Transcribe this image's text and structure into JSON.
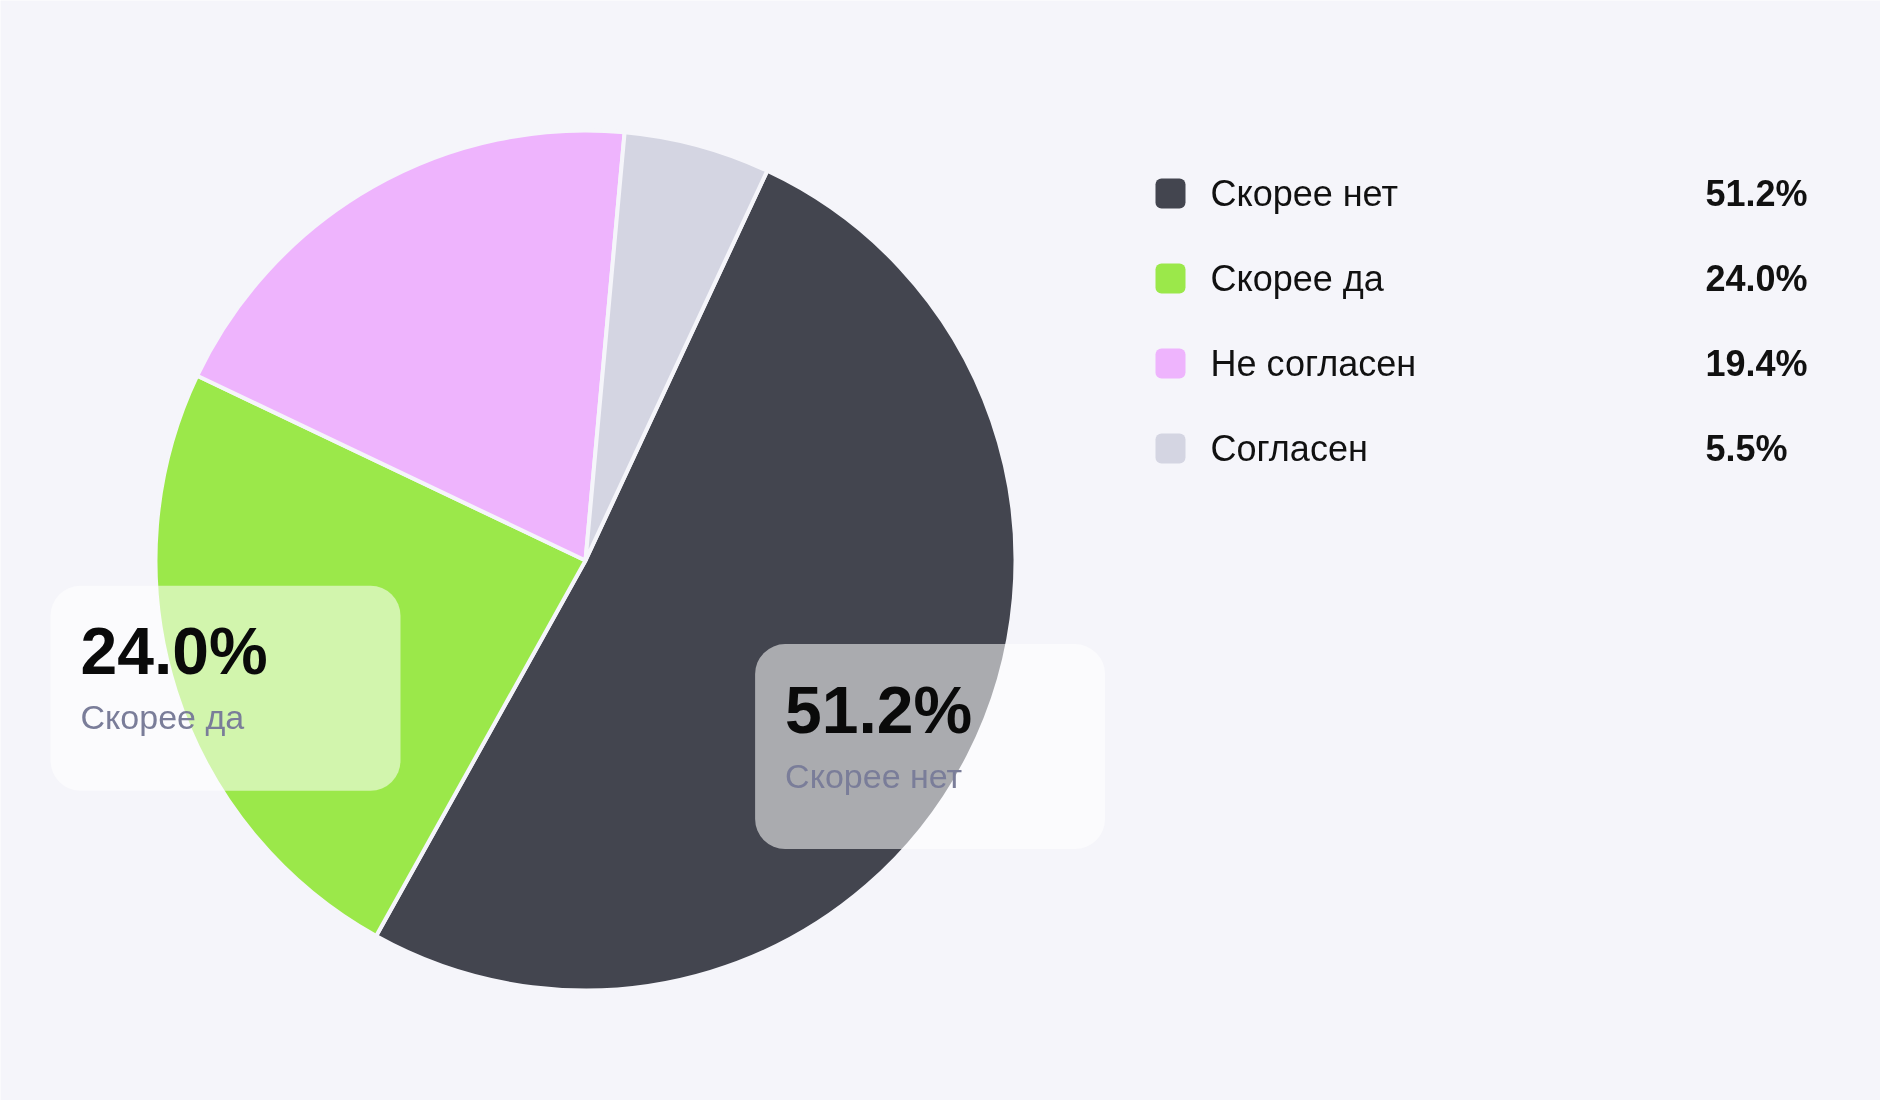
{
  "chart_data": {
    "type": "pie",
    "categories": [
      "Скорее нет",
      "Скорее да",
      "Не согласен",
      "Согласен"
    ],
    "values": [
      51.2,
      24.0,
      19.4,
      5.5
    ],
    "colors": [
      "#43454f",
      "#9be84a",
      "#eeb4fd",
      "#d4d5e2"
    ],
    "data_labels": true,
    "value_labels": [
      "51.2%",
      "24.0%",
      "19.4%",
      "5.5%"
    ],
    "legend": "right"
  }
}
